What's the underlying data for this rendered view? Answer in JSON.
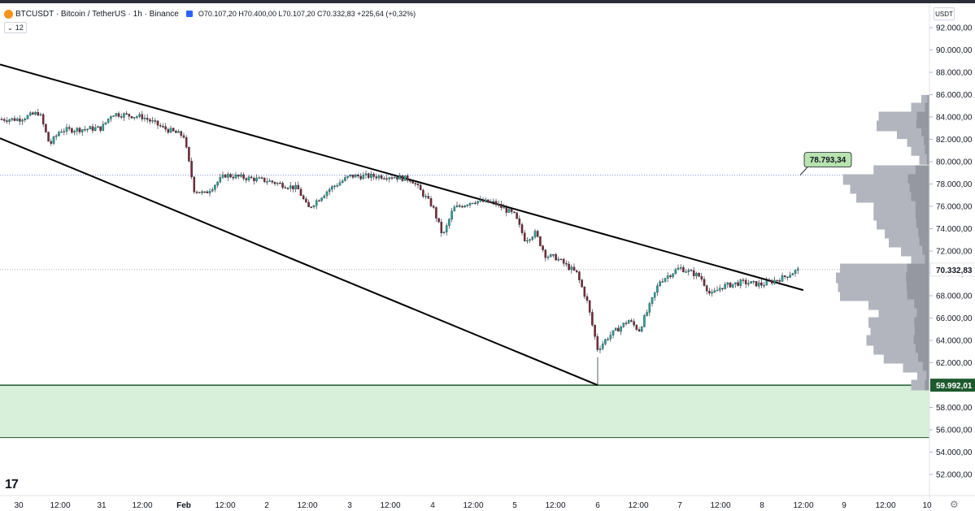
{
  "header": {
    "symbol": "BTCUSDT · Bitcoin / TetherUS · 1h · Binance",
    "open_label": "O",
    "open": "70.107,20",
    "high_label": "H",
    "high": "70.400,00",
    "low_label": "L",
    "low": "70.107,20",
    "close_label": "C",
    "close": "70.332,83",
    "change": "+225,64 (+0,32%)"
  },
  "indicator_toggle": {
    "chevron": "⌄",
    "value": "12"
  },
  "currency_button": "USDT",
  "price_axis": {
    "ticks": [
      "92.000,00",
      "90.000,00",
      "88.000,00",
      "86.000,00",
      "84.000,00",
      "82.000,00",
      "80.000,00",
      "78.000,00",
      "76.000,00",
      "74.000,00",
      "72.000,00",
      "70.000,00",
      "68.000,00",
      "66.000,00",
      "64.000,00",
      "62.000,00",
      "58.000,00",
      "56.000,00",
      "54.000,00",
      "52.000,00"
    ],
    "tick_values": [
      92000,
      90000,
      88000,
      86000,
      84000,
      82000,
      80000,
      78000,
      76000,
      74000,
      72000,
      70000,
      68000,
      66000,
      64000,
      62000,
      58000,
      56000,
      54000,
      52000
    ],
    "current_price": "70.332,83",
    "support_price": "59.992,01"
  },
  "annotation": {
    "label": "78.793,34",
    "price": 78793.34,
    "color": "#b8e3b0"
  },
  "time_axis": {
    "labels": [
      "30",
      "12:00",
      "31",
      "12:00",
      "Feb",
      "12:00",
      "2",
      "12:00",
      "3",
      "12:00",
      "4",
      "12:00",
      "5",
      "12:00",
      "6",
      "12:00",
      "7",
      "12:00",
      "8",
      "12:00",
      "9",
      "12:00",
      "10"
    ],
    "bold_labels": [
      "Feb"
    ]
  },
  "logo": "17",
  "settings_icon": "gear-icon",
  "colors": {
    "up": "#26a69a",
    "down": "#7a2a36",
    "trendline": "#000000",
    "support_zone": "#d8efd9",
    "support_border": "#1e5a2e",
    "volume_profile": "#b2b5be"
  },
  "chart_data": {
    "type": "candlestick",
    "symbol": "BTCUSDT",
    "interval": "1h",
    "price_levels": {
      "current": 70332.83,
      "support": 59992.01,
      "annotation": 78793.34
    },
    "support_zone": [
      55300,
      59992.01
    ],
    "channel_trendlines": [
      {
        "name": "upper",
        "points": [
          [
            "30",
            88700
          ],
          [
            "8 12:00",
            68500
          ]
        ]
      },
      {
        "name": "lower",
        "points": [
          [
            "30",
            82100
          ],
          [
            "6",
            59992.01
          ]
        ]
      }
    ],
    "path": [
      [
        "30",
        83800
      ],
      [
        "30 06:00",
        84400
      ],
      [
        "30 09:00",
        81500
      ],
      [
        "30 12:00",
        82800
      ],
      [
        "31",
        83000
      ],
      [
        "31 03:00",
        84300
      ],
      [
        "31 12:00",
        84000
      ],
      [
        "31 18:00",
        83000
      ],
      [
        "Feb",
        82300
      ],
      [
        "Feb 03:00",
        77500
      ],
      [
        "Feb 06:00",
        77100
      ],
      [
        "Feb 12:00",
        78800
      ],
      [
        "2",
        78300
      ],
      [
        "2 09:00",
        77600
      ],
      [
        "2 12:00",
        75800
      ],
      [
        "2 18:00",
        77500
      ],
      [
        "3",
        78700
      ],
      [
        "3 12:00",
        78700
      ],
      [
        "3 18:00",
        78400
      ],
      [
        "4",
        76000
      ],
      [
        "4 03:00",
        73300
      ],
      [
        "4 06:00",
        75800
      ],
      [
        "4 12:00",
        76500
      ],
      [
        "4 18:00",
        76300
      ],
      [
        "5",
        75200
      ],
      [
        "5 03:00",
        73000
      ],
      [
        "5 06:00",
        73600
      ],
      [
        "5 09:00",
        71600
      ],
      [
        "5 12:00",
        71400
      ],
      [
        "5 18:00",
        70000
      ],
      [
        "5 21:00",
        67500
      ],
      [
        "6",
        63200
      ],
      [
        "6 03:00",
        64300
      ],
      [
        "6 09:00",
        65800
      ],
      [
        "6 12:00",
        64900
      ],
      [
        "6 15:00",
        67000
      ],
      [
        "6 18:00",
        69300
      ],
      [
        "7",
        70500
      ],
      [
        "7 06:00",
        69700
      ],
      [
        "7 09:00",
        68000
      ],
      [
        "7 12:00",
        68800
      ],
      [
        "7 18:00",
        69200
      ],
      [
        "8",
        69000
      ],
      [
        "8 06:00",
        69600
      ],
      [
        "8 09:00",
        70100
      ],
      [
        "8 11:00",
        70332.83
      ]
    ],
    "extreme_wicks": [
      {
        "at": "6",
        "low": 59992.01
      }
    ],
    "volume_profile": {
      "prices": [
        85500,
        84800,
        84000,
        83200,
        82500,
        81800,
        81000,
        80200,
        79200,
        78400,
        77600,
        76800,
        76000,
        75200,
        74400,
        73600,
        72800,
        72000,
        71200,
        70400,
        69600,
        68800,
        68000,
        67200,
        66400,
        65600,
        64800,
        64000,
        63200,
        62400,
        61600,
        60800,
        60000
      ],
      "values": [
        0.08,
        0.18,
        0.5,
        0.52,
        0.32,
        0.22,
        0.18,
        0.1,
        0.55,
        0.85,
        0.78,
        0.72,
        0.55,
        0.55,
        0.52,
        0.44,
        0.4,
        0.28,
        0.18,
        0.88,
        0.92,
        0.9,
        0.88,
        0.6,
        0.5,
        0.6,
        0.58,
        0.62,
        0.55,
        0.45,
        0.26,
        0.12,
        0.18
      ]
    }
  }
}
